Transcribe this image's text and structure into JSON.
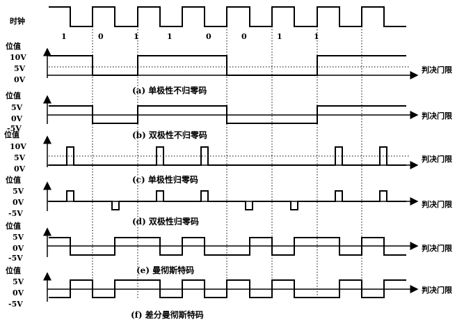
{
  "clock": {
    "label": "时钟",
    "bits": [
      "1",
      "0",
      "1",
      "1",
      "0",
      "0",
      "1",
      "1"
    ]
  },
  "threshold_label": "判决门限",
  "axis_title": "位值",
  "panels": [
    {
      "id": "a",
      "caption": "(a)  单极性不归零码",
      "levels": [
        "10V",
        "5V",
        "0V"
      ],
      "threshold_level": "5V"
    },
    {
      "id": "b",
      "caption": "(b)  双极性不归零码",
      "levels": [
        "5V",
        "0V",
        "-5V"
      ],
      "threshold_level": "0V"
    },
    {
      "id": "c",
      "caption": "(c)  单极性归零码",
      "levels": [
        "10V",
        "5V",
        "0V"
      ],
      "threshold_level": "5V"
    },
    {
      "id": "d",
      "caption": "(d)  双极性归零码",
      "levels": [
        "5V",
        "0V",
        "-5V"
      ],
      "threshold_level": "0V"
    },
    {
      "id": "e",
      "caption": "(e)  曼彻斯特码",
      "levels": [
        "5V",
        "0V",
        "-5V"
      ],
      "threshold_level": "0V"
    },
    {
      "id": "f",
      "caption": "(f)  差分曼彻斯特码",
      "levels": [
        "5V",
        "0V",
        "-5V"
      ],
      "threshold_level": "0V"
    }
  ]
}
